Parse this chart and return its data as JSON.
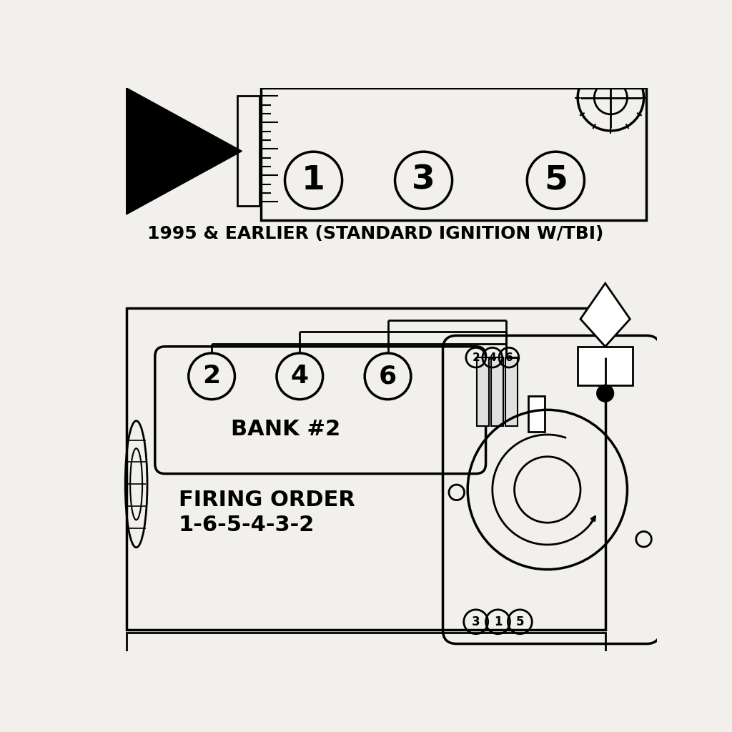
{
  "bg_color": "#f2f0ec",
  "line_color": "#000000",
  "title1": "1995 & EARLIER (STANDARD IGNITION W/TBI)",
  "bank2_label": "BANK #2",
  "firing_order_label": "FIRING ORDER",
  "firing_order": "1-6-5-4-3-2",
  "cylinders_top": [
    "1",
    "3",
    "5"
  ],
  "cylinders_bottom": [
    "2",
    "4",
    "6"
  ],
  "dist_top_labels": [
    "2",
    "4",
    "6"
  ],
  "dist_bot_labels": [
    "3",
    "1",
    "5"
  ]
}
